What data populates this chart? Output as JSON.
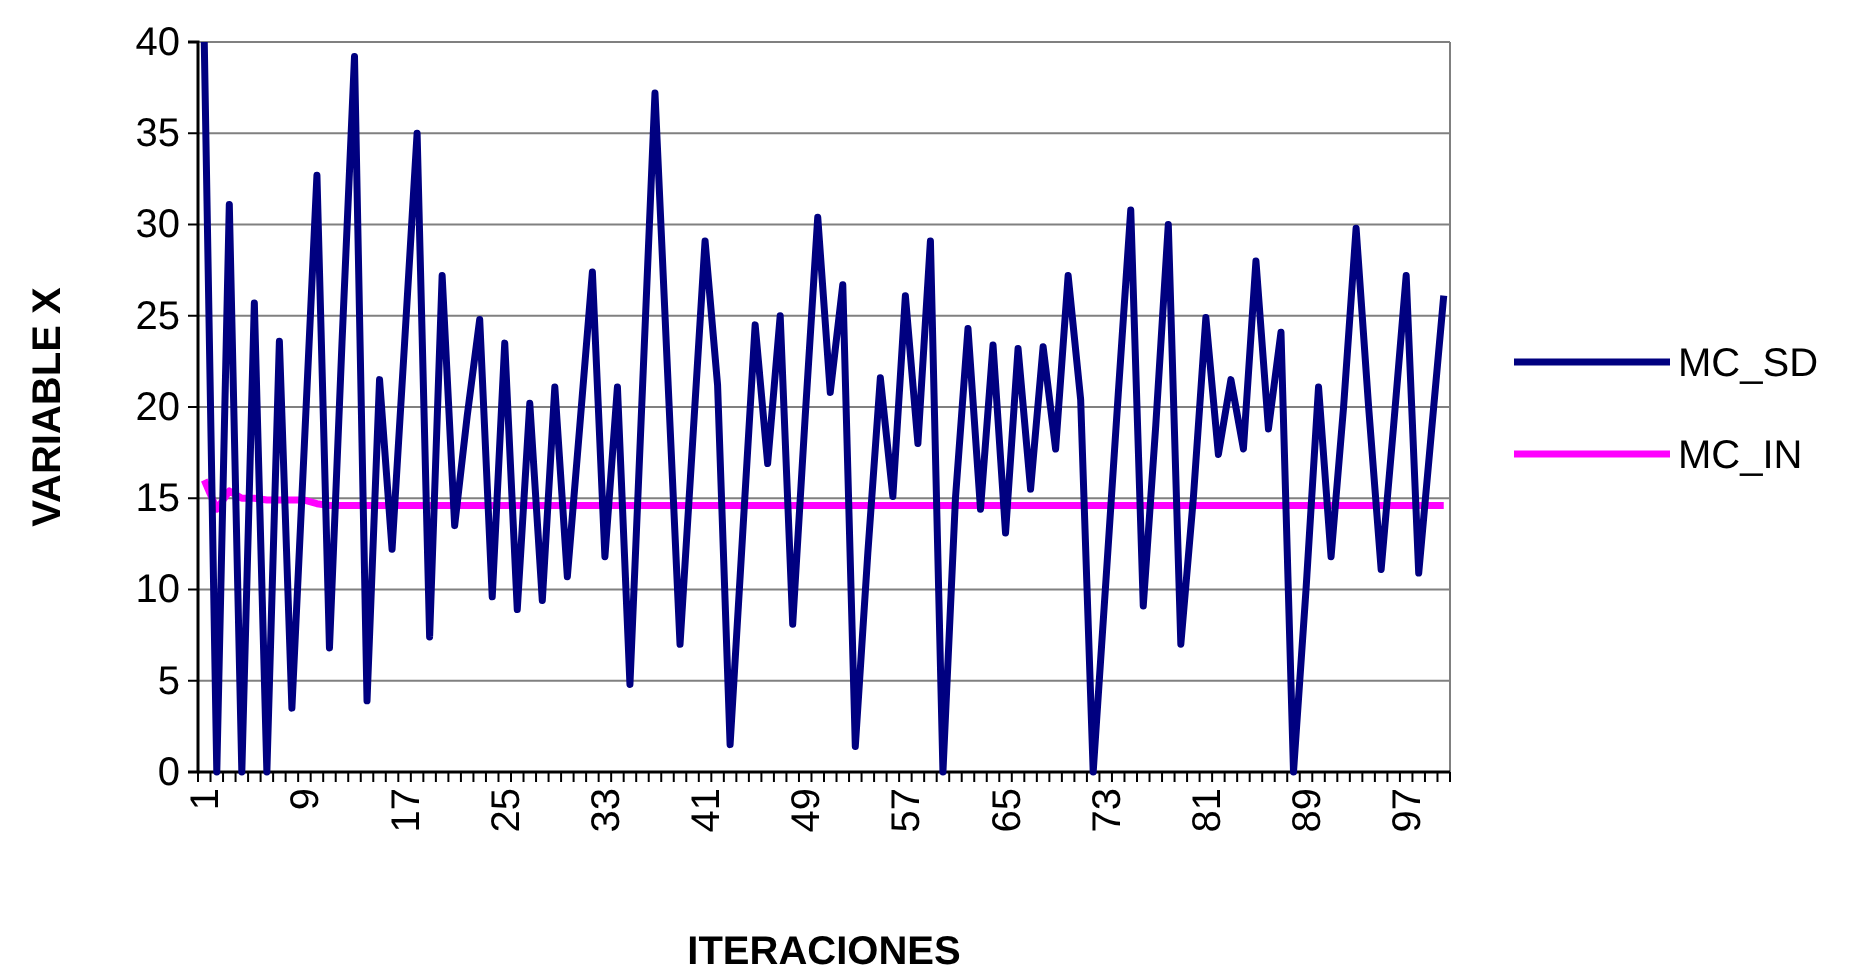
{
  "chart_data": {
    "type": "line",
    "xlabel": "ITERACIONES",
    "ylabel": "VARIABLE X",
    "categories": [
      "1",
      null,
      null,
      null,
      null,
      null,
      null,
      null,
      "9",
      null,
      null,
      null,
      null,
      null,
      null,
      null,
      "17",
      null,
      null,
      null,
      null,
      null,
      null,
      null,
      "25",
      null,
      null,
      null,
      null,
      null,
      null,
      null,
      "33",
      null,
      null,
      null,
      null,
      null,
      null,
      null,
      "41",
      null,
      null,
      null,
      null,
      null,
      null,
      null,
      "49",
      null,
      null,
      null,
      null,
      null,
      null,
      null,
      "57",
      null,
      null,
      null,
      null,
      null,
      null,
      null,
      "65",
      null,
      null,
      null,
      null,
      null,
      null,
      null,
      "73",
      null,
      null,
      null,
      null,
      null,
      null,
      null,
      "81",
      null,
      null,
      null,
      null,
      null,
      null,
      null,
      "89",
      null,
      null,
      null,
      null,
      null,
      null,
      null,
      "97",
      null,
      null,
      null
    ],
    "series": [
      {
        "name": "MC_SD",
        "color": "#000080",
        "values": [
          40,
          0,
          31.1,
          0,
          25.7,
          0,
          23.6,
          3.5,
          18,
          32.7,
          6.8,
          23.5,
          39.2,
          3.9,
          21.5,
          12.2,
          23.5,
          35,
          7.4,
          27.2,
          13.5,
          19.5,
          24.8,
          9.6,
          23.5,
          8.9,
          20.2,
          9.4,
          21.1,
          10.7,
          19,
          27.4,
          11.8,
          21.1,
          4.8,
          21,
          37.2,
          22,
          7,
          18,
          29.1,
          21.2,
          1.5,
          13,
          24.5,
          16.9,
          25,
          8.1,
          19.5,
          30.4,
          20.8,
          26.7,
          1.4,
          12,
          21.6,
          15.1,
          26.1,
          18,
          29.1,
          0,
          15,
          24.3,
          14.4,
          23.4,
          13.1,
          23.2,
          15.5,
          23.3,
          17.7,
          27.2,
          20.4,
          0,
          10.3,
          20.7,
          30.8,
          9.1,
          19,
          30,
          7,
          15,
          24.9,
          17.4,
          21.5,
          17.7,
          28,
          18.8,
          24.1,
          0,
          10,
          21.1,
          11.8,
          20,
          29.8,
          20,
          11.1,
          19,
          27.2,
          10.9,
          18.5,
          26.1
        ]
      },
      {
        "name": "MC_IN",
        "color": "#ff00ff",
        "values": [
          16,
          14.4,
          15.4,
          15,
          15,
          14.9,
          14.9,
          14.9,
          14.9,
          14.7,
          14.6,
          14.6,
          14.6,
          14.6,
          14.6,
          14.6,
          14.6,
          14.6,
          14.6,
          14.6,
          14.6,
          14.6,
          14.6,
          14.6,
          14.6,
          14.6,
          14.6,
          14.6,
          14.6,
          14.6,
          14.6,
          14.6,
          14.6,
          14.6,
          14.6,
          14.6,
          14.6,
          14.6,
          14.6,
          14.6,
          14.6,
          14.6,
          14.6,
          14.6,
          14.6,
          14.6,
          14.6,
          14.6,
          14.6,
          14.6,
          14.6,
          14.6,
          14.6,
          14.6,
          14.6,
          14.6,
          14.6,
          14.6,
          14.6,
          14.6,
          14.6,
          14.6,
          14.6,
          14.6,
          14.6,
          14.6,
          14.6,
          14.6,
          14.6,
          14.6,
          14.6,
          14.6,
          14.6,
          14.6,
          14.6,
          14.6,
          14.6,
          14.6,
          14.6,
          14.6,
          14.6,
          14.6,
          14.6,
          14.6,
          14.6,
          14.6,
          14.6,
          14.6,
          14.6,
          14.6,
          14.6,
          14.6,
          14.6,
          14.6,
          14.6,
          14.6,
          14.6,
          14.6,
          14.6,
          14.6
        ]
      }
    ],
    "ylim": [
      0,
      40
    ],
    "yticks": [
      0,
      5,
      10,
      15,
      20,
      25,
      30,
      35,
      40
    ],
    "grid": "y",
    "legend": "right",
    "line_style": "solid",
    "marker": "none"
  }
}
